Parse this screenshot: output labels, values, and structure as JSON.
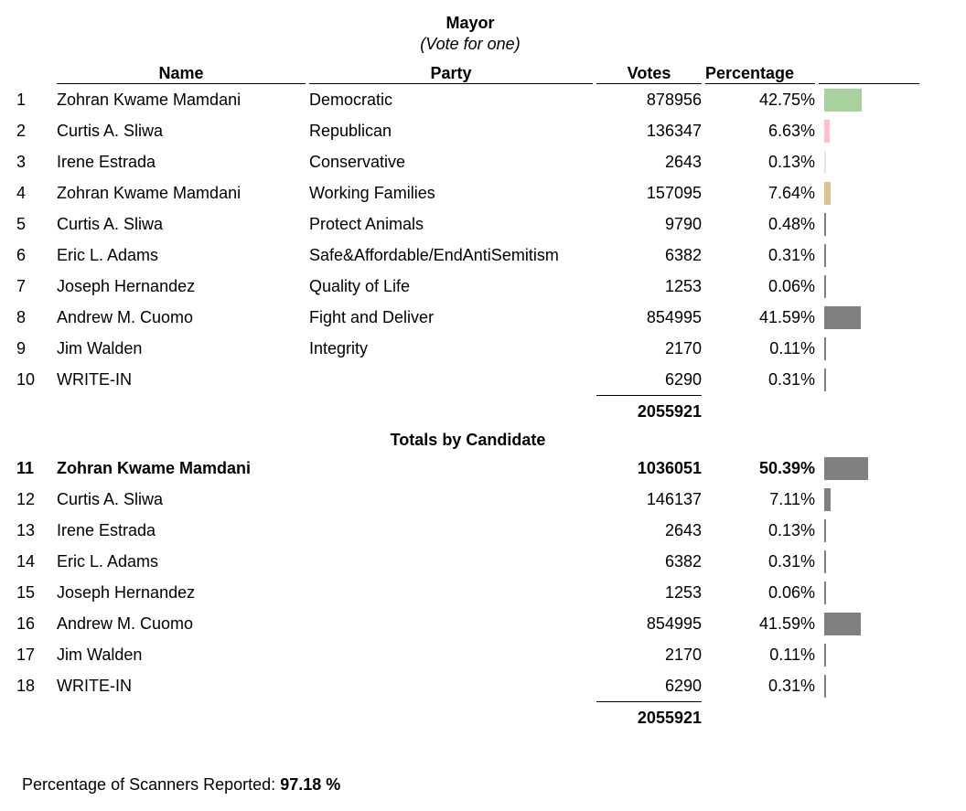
{
  "title": "Mayor",
  "subtitle": "(Vote for one)",
  "headers": {
    "name": "Name",
    "party": "Party",
    "votes": "Votes",
    "percentage": "Percentage"
  },
  "rows": [
    {
      "n": "1",
      "name": "Zohran Kwame Mamdani",
      "party": "Democratic",
      "votes": "878956",
      "pct": "42.75%",
      "value": 42.75,
      "color": "#a9d1a0"
    },
    {
      "n": "2",
      "name": "Curtis A. Sliwa",
      "party": "Republican",
      "votes": "136347",
      "pct": "6.63%",
      "value": 6.63,
      "color": "#ffc0cb"
    },
    {
      "n": "3",
      "name": "Irene Estrada",
      "party": "Conservative",
      "votes": "2643",
      "pct": "0.13%",
      "value": 0.13,
      "color": "#e6e6e6"
    },
    {
      "n": "4",
      "name": "Zohran Kwame Mamdani",
      "party": "Working Families",
      "votes": "157095",
      "pct": "7.64%",
      "value": 7.64,
      "color": "#dec194"
    },
    {
      "n": "5",
      "name": "Curtis A. Sliwa",
      "party": "Protect Animals",
      "votes": "9790",
      "pct": "0.48%",
      "value": 0.48,
      "color": "#808080"
    },
    {
      "n": "6",
      "name": "Eric L. Adams",
      "party": "Safe&Affordable/EndAntiSemitism",
      "votes": "6382",
      "pct": "0.31%",
      "value": 0.31,
      "color": "#808080"
    },
    {
      "n": "7",
      "name": "Joseph Hernandez",
      "party": "Quality of Life",
      "votes": "1253",
      "pct": "0.06%",
      "value": 0.06,
      "color": "#808080"
    },
    {
      "n": "8",
      "name": "Andrew M. Cuomo",
      "party": "Fight and Deliver",
      "votes": "854995",
      "pct": "41.59%",
      "value": 41.59,
      "color": "#808080"
    },
    {
      "n": "9",
      "name": "Jim Walden",
      "party": "Integrity",
      "votes": "2170",
      "pct": "0.11%",
      "value": 0.11,
      "color": "#808080"
    },
    {
      "n": "10",
      "name": "WRITE-IN",
      "party": "",
      "votes": "6290",
      "pct": "0.31%",
      "value": 0.31,
      "color": "#808080"
    }
  ],
  "total1": "2055921",
  "section": "Totals by Candidate",
  "candidates": [
    {
      "n": "11",
      "name": "Zohran Kwame Mamdani",
      "votes": "1036051",
      "pct": "50.39%",
      "value": 50.39,
      "bold": true
    },
    {
      "n": "12",
      "name": "Curtis A. Sliwa",
      "votes": "146137",
      "pct": "7.11%",
      "value": 7.11
    },
    {
      "n": "13",
      "name": "Irene Estrada",
      "votes": "2643",
      "pct": "0.13%",
      "value": 0.13
    },
    {
      "n": "14",
      "name": "Eric L. Adams",
      "votes": "6382",
      "pct": "0.31%",
      "value": 0.31
    },
    {
      "n": "15",
      "name": "Joseph Hernandez",
      "votes": "1253",
      "pct": "0.06%",
      "value": 0.06
    },
    {
      "n": "16",
      "name": "Andrew M. Cuomo",
      "votes": "854995",
      "pct": "41.59%",
      "value": 41.59
    },
    {
      "n": "17",
      "name": "Jim Walden",
      "votes": "2170",
      "pct": "0.11%",
      "value": 0.11
    },
    {
      "n": "18",
      "name": "WRITE-IN",
      "votes": "6290",
      "pct": "0.31%",
      "value": 0.31
    }
  ],
  "total2": "2055921",
  "footer": {
    "label": "Percentage of Scanners Reported: ",
    "value": "97.18 %"
  }
}
